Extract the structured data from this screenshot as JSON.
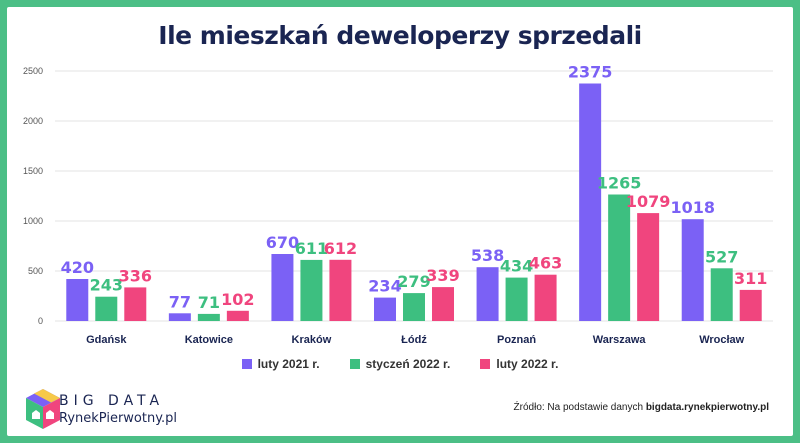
{
  "colors": {
    "background_frame": "#4cbf86",
    "series": [
      "#7b61f5",
      "#3dbf80",
      "#f0457e"
    ],
    "title": "#1a2552"
  },
  "chart_data": {
    "type": "bar",
    "title": "Ile mieszkań deweloperzy sprzedali",
    "categories": [
      "Gdańsk",
      "Katowice",
      "Kraków",
      "Łódź",
      "Poznań",
      "Warszawa",
      "Wrocław"
    ],
    "series": [
      {
        "name": "luty 2021 r.",
        "values": [
          420,
          77,
          670,
          234,
          538,
          2375,
          1018
        ]
      },
      {
        "name": "styczeń 2022 r.",
        "values": [
          243,
          71,
          611,
          279,
          434,
          1265,
          527
        ]
      },
      {
        "name": "luty 2022 r.",
        "values": [
          336,
          102,
          612,
          339,
          463,
          1079,
          311
        ]
      }
    ],
    "yticks": [
      0,
      500,
      1000,
      1500,
      2000,
      2500
    ],
    "ylim": [
      0,
      2500
    ],
    "grid": true,
    "legend": "bottom-center"
  },
  "logo": {
    "line1": "BIG DATA",
    "line2": "RynekPierwotny.pl"
  },
  "source": {
    "prefix": "Źródło: Na podstawie danych ",
    "site": "bigdata.rynekpierwotny.pl"
  }
}
